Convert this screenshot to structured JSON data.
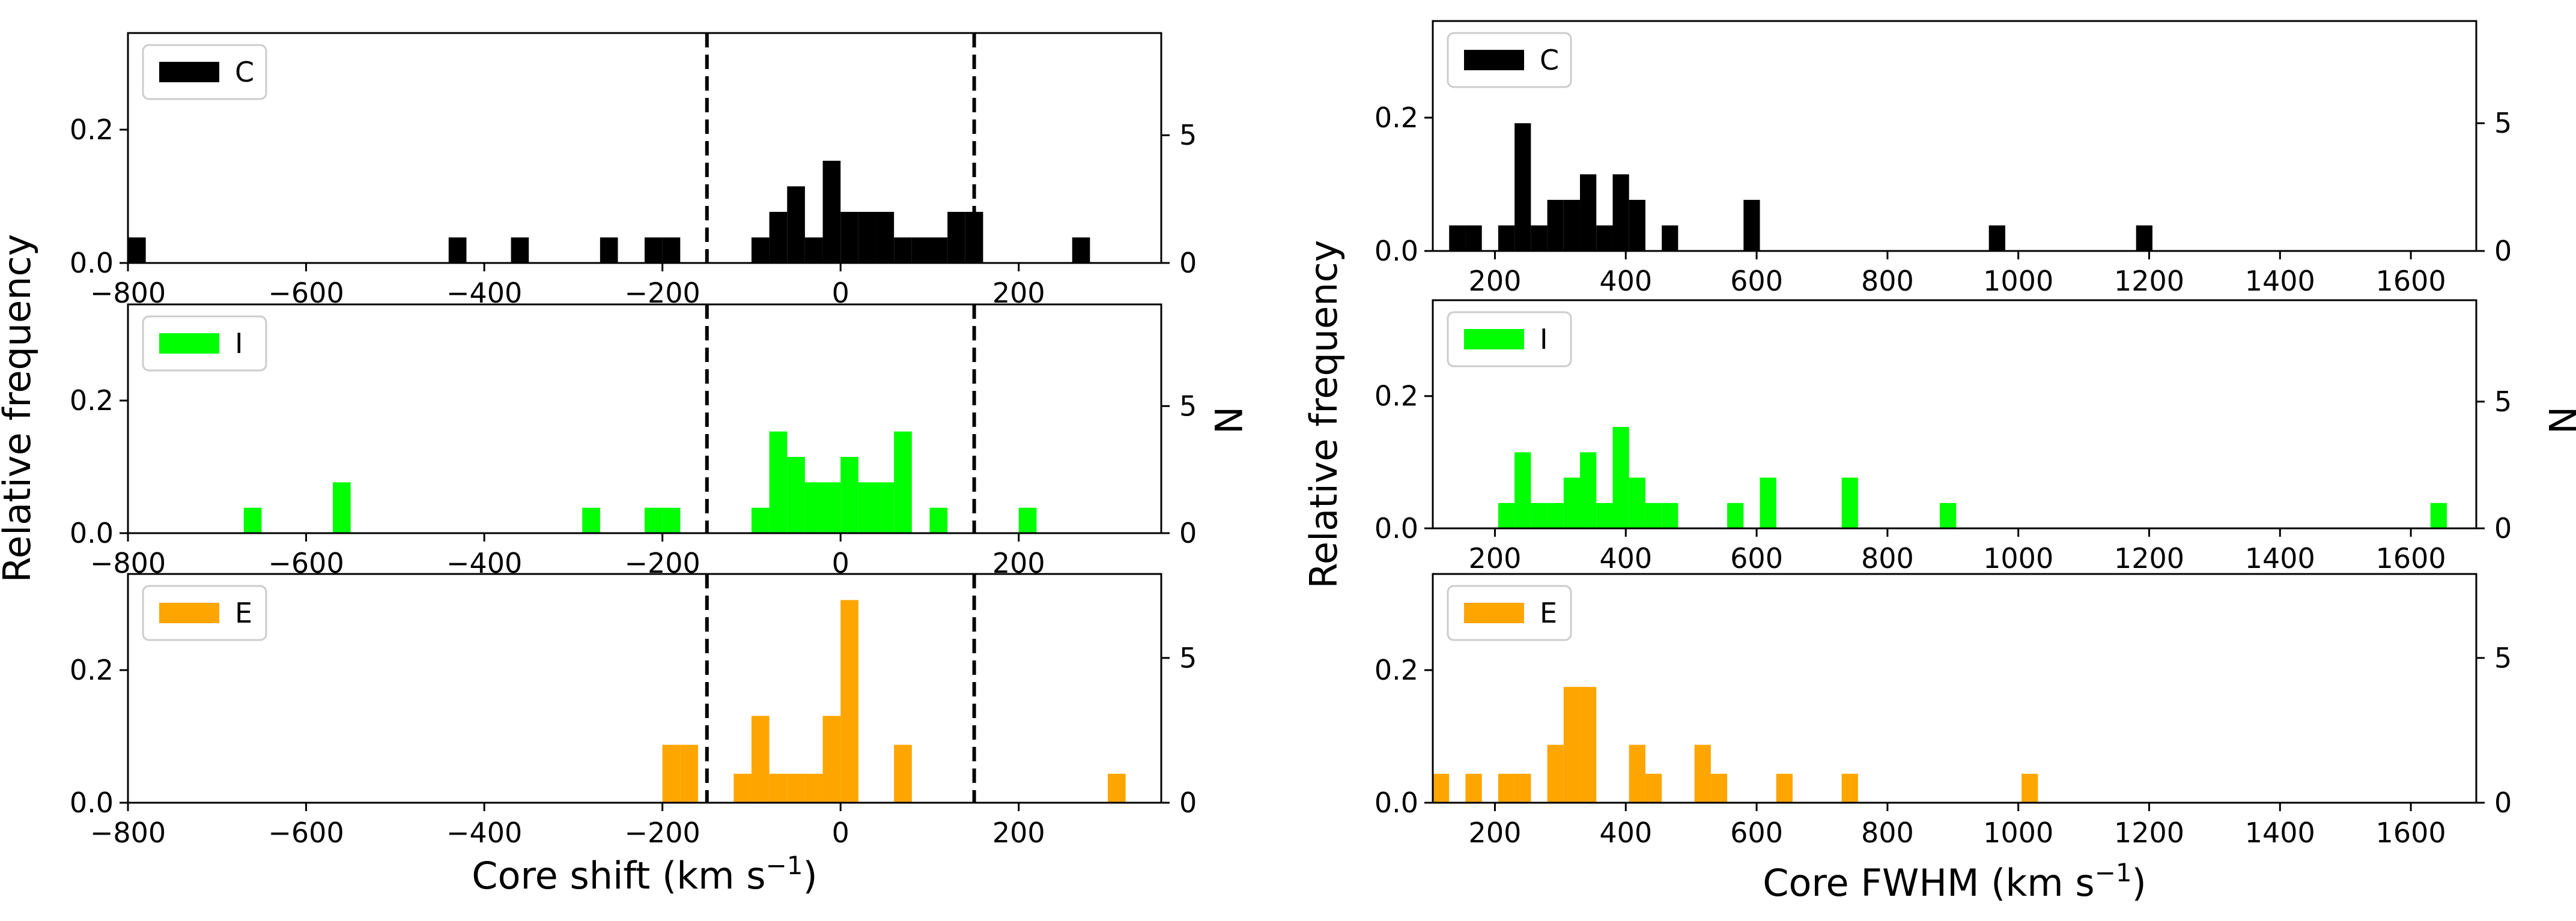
{
  "chart_data": [
    {
      "type": "bar",
      "title": "",
      "xlabel": "Core shift (km s⁻¹)",
      "ylabel": "Relative frequency",
      "ylabel_right": "N",
      "xlim": [
        -800,
        360
      ],
      "xticks": [
        -800,
        -600,
        -400,
        -200,
        0,
        200
      ],
      "reference_lines_x": [
        -150,
        150
      ],
      "panels": [
        {
          "legend": "C",
          "color": "#000000",
          "ylim": [
            0,
            0.345
          ],
          "yticks": [
            0.0,
            0.2
          ],
          "ylim_right": [
            0,
            9.0
          ],
          "yticks_right": [
            0,
            5
          ],
          "bin_width": 20,
          "bins": [
            {
              "x": -800,
              "n": 1
            },
            {
              "x": -440,
              "n": 1
            },
            {
              "x": -370,
              "n": 1
            },
            {
              "x": -270,
              "n": 1
            },
            {
              "x": -220,
              "n": 1
            },
            {
              "x": -200,
              "n": 1
            },
            {
              "x": -100,
              "n": 1
            },
            {
              "x": -80,
              "n": 2
            },
            {
              "x": -60,
              "n": 3
            },
            {
              "x": -40,
              "n": 1
            },
            {
              "x": -20,
              "n": 4
            },
            {
              "x": 0,
              "n": 2
            },
            {
              "x": 20,
              "n": 2
            },
            {
              "x": 40,
              "n": 2
            },
            {
              "x": 60,
              "n": 1
            },
            {
              "x": 80,
              "n": 1
            },
            {
              "x": 100,
              "n": 1
            },
            {
              "x": 120,
              "n": 2
            },
            {
              "x": 140,
              "n": 2
            },
            {
              "x": 260,
              "n": 1
            }
          ]
        },
        {
          "legend": "I",
          "color": "#00ff00",
          "ylim": [
            0,
            0.345
          ],
          "yticks": [
            0.0,
            0.2
          ],
          "ylim_right": [
            0,
            9.0
          ],
          "yticks_right": [
            0,
            5
          ],
          "bin_width": 20,
          "bins": [
            {
              "x": -670,
              "n": 1
            },
            {
              "x": -570,
              "n": 2
            },
            {
              "x": -290,
              "n": 1
            },
            {
              "x": -220,
              "n": 1
            },
            {
              "x": -200,
              "n": 1
            },
            {
              "x": -100,
              "n": 1
            },
            {
              "x": -80,
              "n": 4
            },
            {
              "x": -60,
              "n": 3
            },
            {
              "x": -40,
              "n": 2
            },
            {
              "x": -20,
              "n": 2
            },
            {
              "x": 0,
              "n": 3
            },
            {
              "x": 20,
              "n": 2
            },
            {
              "x": 40,
              "n": 2
            },
            {
              "x": 60,
              "n": 4
            },
            {
              "x": 100,
              "n": 1
            },
            {
              "x": 200,
              "n": 1
            }
          ]
        },
        {
          "legend": "E",
          "color": "#ffa500",
          "ylim": [
            0,
            0.345
          ],
          "yticks": [
            0.0,
            0.2
          ],
          "ylim_right": [
            0,
            7.9
          ],
          "yticks_right": [
            0,
            5
          ],
          "bin_width": 20,
          "bins": [
            {
              "x": -200,
              "n": 2
            },
            {
              "x": -180,
              "n": 2
            },
            {
              "x": -120,
              "n": 1
            },
            {
              "x": -100,
              "n": 3
            },
            {
              "x": -80,
              "n": 1
            },
            {
              "x": -60,
              "n": 1
            },
            {
              "x": -40,
              "n": 1
            },
            {
              "x": -20,
              "n": 3
            },
            {
              "x": 0,
              "n": 7
            },
            {
              "x": 60,
              "n": 2
            },
            {
              "x": 300,
              "n": 1
            }
          ]
        }
      ]
    },
    {
      "type": "bar",
      "title": "",
      "xlabel": "Core FWHM (km s⁻¹)",
      "ylabel": "Relative frequency",
      "ylabel_right": "N",
      "xlim": [
        105,
        1700
      ],
      "xticks": [
        200,
        400,
        600,
        800,
        1000,
        1200,
        1400,
        1600
      ],
      "reference_lines_x": [],
      "panels": [
        {
          "legend": "C",
          "color": "#000000",
          "ylim": [
            0,
            0.345
          ],
          "yticks": [
            0.0,
            0.2
          ],
          "ylim_right": [
            0,
            9.0
          ],
          "yticks_right": [
            0,
            5
          ],
          "bin_width": 25,
          "bins": [
            {
              "x": 130,
              "n": 1
            },
            {
              "x": 155,
              "n": 1
            },
            {
              "x": 205,
              "n": 1
            },
            {
              "x": 230,
              "n": 5
            },
            {
              "x": 255,
              "n": 1
            },
            {
              "x": 280,
              "n": 2
            },
            {
              "x": 305,
              "n": 2
            },
            {
              "x": 330,
              "n": 3
            },
            {
              "x": 355,
              "n": 1
            },
            {
              "x": 380,
              "n": 3
            },
            {
              "x": 405,
              "n": 2
            },
            {
              "x": 455,
              "n": 1
            },
            {
              "x": 580,
              "n": 2
            },
            {
              "x": 955,
              "n": 1
            },
            {
              "x": 1180,
              "n": 1
            }
          ]
        },
        {
          "legend": "I",
          "color": "#00ff00",
          "ylim": [
            0,
            0.345
          ],
          "yticks": [
            0.0,
            0.2
          ],
          "ylim_right": [
            0,
            9.0
          ],
          "yticks_right": [
            0,
            5
          ],
          "bin_width": 25,
          "bins": [
            {
              "x": 205,
              "n": 1
            },
            {
              "x": 230,
              "n": 3
            },
            {
              "x": 255,
              "n": 1
            },
            {
              "x": 280,
              "n": 1
            },
            {
              "x": 305,
              "n": 2
            },
            {
              "x": 330,
              "n": 3
            },
            {
              "x": 355,
              "n": 1
            },
            {
              "x": 380,
              "n": 4
            },
            {
              "x": 405,
              "n": 2
            },
            {
              "x": 430,
              "n": 1
            },
            {
              "x": 455,
              "n": 1
            },
            {
              "x": 555,
              "n": 1
            },
            {
              "x": 605,
              "n": 2
            },
            {
              "x": 730,
              "n": 2
            },
            {
              "x": 880,
              "n": 1
            },
            {
              "x": 1630,
              "n": 1
            }
          ]
        },
        {
          "legend": "E",
          "color": "#ffa500",
          "ylim": [
            0,
            0.345
          ],
          "yticks": [
            0.0,
            0.2
          ],
          "ylim_right": [
            0,
            7.9
          ],
          "yticks_right": [
            0,
            5
          ],
          "bin_width": 25,
          "bins": [
            {
              "x": 105,
              "n": 1
            },
            {
              "x": 155,
              "n": 1
            },
            {
              "x": 205,
              "n": 1
            },
            {
              "x": 230,
              "n": 1
            },
            {
              "x": 280,
              "n": 2
            },
            {
              "x": 305,
              "n": 4
            },
            {
              "x": 330,
              "n": 4
            },
            {
              "x": 405,
              "n": 2
            },
            {
              "x": 430,
              "n": 1
            },
            {
              "x": 505,
              "n": 2
            },
            {
              "x": 530,
              "n": 1
            },
            {
              "x": 630,
              "n": 1
            },
            {
              "x": 730,
              "n": 1
            },
            {
              "x": 1005,
              "n": 1
            }
          ]
        }
      ]
    }
  ]
}
